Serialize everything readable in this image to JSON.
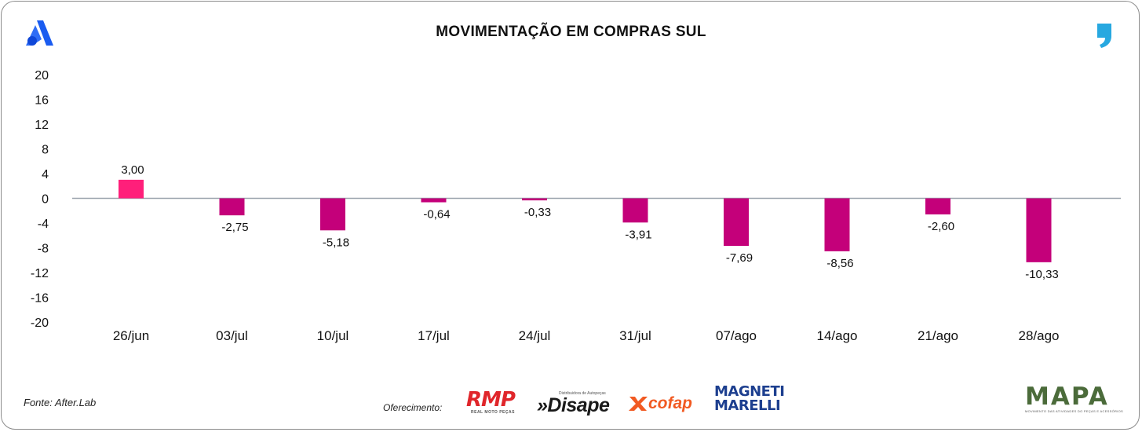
{
  "header": {
    "title": "MOVIMENTAÇÃO EM COMPRAS SUL",
    "left_logo": "after-logo-a",
    "right_logo": "comma-quote-icon"
  },
  "footer": {
    "source": "Fonte: After.Lab",
    "offer_label": "Oferecimento:",
    "sponsors": {
      "rmp": "RMP",
      "rmp_sub": "REAL MOTO PEÇAS",
      "disape_small": "Distribuidora de Autopeças",
      "disape": "»Disape",
      "cofap": "cofap",
      "magneti_line1": "MAGNETI",
      "magneti_line2": "MARELLI"
    },
    "mapa": "MAPA",
    "mapa_sub": "MOVIMENTO DAS ATIVIDADES DO PEÇAS E ACESSÓRIOS"
  },
  "colors": {
    "positive": "#ff1f7a",
    "negative": "#c4007a",
    "zero_line": "#9aa3ad"
  },
  "chart_data": {
    "type": "bar",
    "title": "MOVIMENTAÇÃO EM COMPRAS SUL",
    "categories": [
      "26/jun",
      "03/jul",
      "10/jul",
      "17/jul",
      "24/jul",
      "31/jul",
      "07/ago",
      "14/ago",
      "21/ago",
      "28/ago"
    ],
    "values": [
      3.0,
      -2.75,
      -5.18,
      -0.64,
      -0.33,
      -3.91,
      -7.69,
      -8.56,
      -2.6,
      -10.33
    ],
    "labels": [
      "3,00",
      "-2,75",
      "-5,18",
      "-0,64",
      "-0,33",
      "-3,91",
      "-7,69",
      "-8,56",
      "-2,60",
      "-10,33"
    ],
    "yticks": [
      20,
      16,
      12,
      8,
      4,
      0,
      -4,
      -8,
      -12,
      -16,
      -20
    ],
    "ylim": [
      -20,
      20
    ],
    "xlabel": "",
    "ylabel": "",
    "grid": false,
    "legend": "none"
  }
}
